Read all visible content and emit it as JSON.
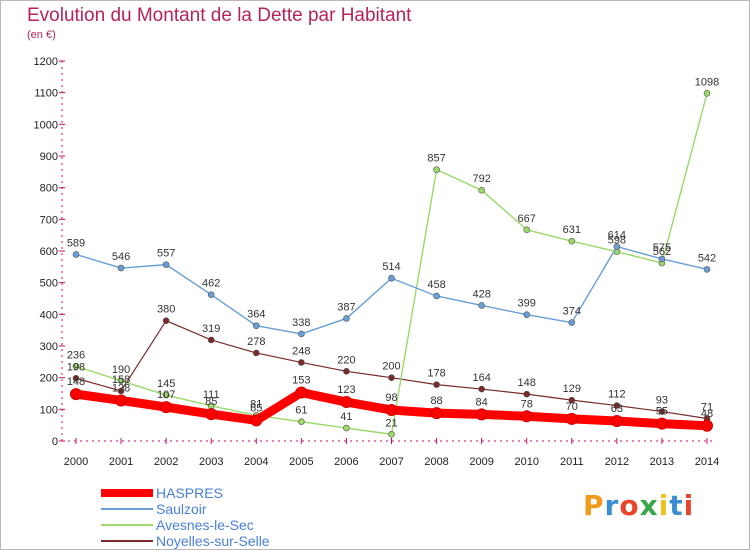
{
  "title": "Evolution du Montant de la Dette par Habitant",
  "unit": "(en €)",
  "logo": {
    "text": "Proxiti",
    "colors": [
      "#f09a1e",
      "#3a8fd0",
      "#e8452c",
      "#3aa84a",
      "#f0c020",
      "#3a8fd0",
      "#e8452c"
    ]
  },
  "chart_data": {
    "type": "line",
    "x": [
      2000,
      2001,
      2002,
      2003,
      2004,
      2005,
      2006,
      2007,
      2008,
      2009,
      2010,
      2011,
      2012,
      2013,
      2014
    ],
    "ylim": [
      0,
      1200
    ],
    "yticks": [
      0,
      100,
      200,
      300,
      400,
      500,
      600,
      700,
      800,
      900,
      1000,
      1100,
      1200
    ],
    "grid": false,
    "legend": "bottom-left",
    "series": [
      {
        "name": "HASPRES",
        "color": "#ff0000",
        "width": 9,
        "values": [
          148,
          128,
          107,
          85,
          65,
          153,
          123,
          98,
          88,
          84,
          78,
          70,
          63,
          55,
          48
        ]
      },
      {
        "name": "Saulzoir",
        "color": "#6a9ed6",
        "width": 1.4,
        "values": [
          589,
          546,
          557,
          462,
          364,
          338,
          387,
          514,
          458,
          428,
          399,
          374,
          614,
          575,
          542
        ]
      },
      {
        "name": "Avesnes-le-Sec",
        "color": "#9ad96a",
        "width": 1.4,
        "values": [
          236,
          190,
          145,
          111,
          81,
          61,
          41,
          21,
          857,
          792,
          667,
          631,
          598,
          562,
          1098
        ]
      },
      {
        "name": "Noyelles-sur-Selle",
        "color": "#7a2a2a",
        "width": 1.2,
        "values": [
          198,
          158,
          380,
          319,
          278,
          248,
          220,
          200,
          178,
          164,
          148,
          129,
          112,
          93,
          71
        ]
      }
    ]
  }
}
